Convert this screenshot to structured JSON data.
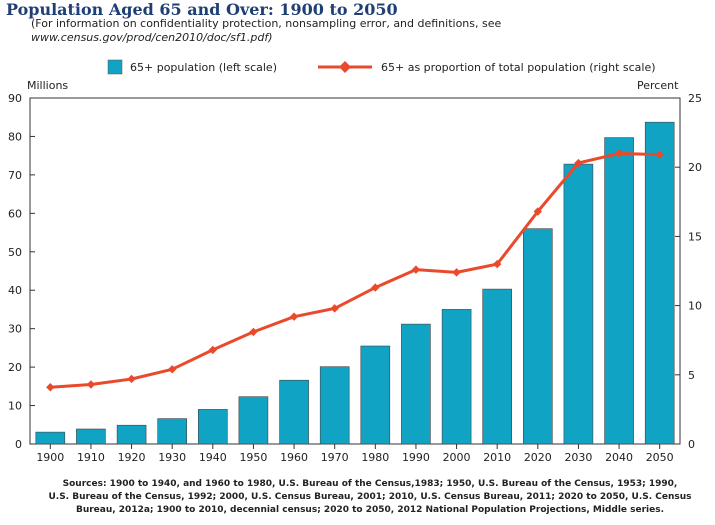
{
  "header": {
    "title": "Population Aged 65 and Over: 1900 to 2050",
    "subtitle_line1": "(For information on confidentiality protection, nonsampling error, and definitions, see",
    "subtitle_line2": "www.census.gov/prod/cen2010/doc/sf1.pdf)"
  },
  "colors": {
    "bar": "#11a3c3",
    "line": "#ea4a2c",
    "title": "#1f3f73"
  },
  "chart_data": {
    "type": "bar",
    "title": "Population Aged 65 and Over: 1900 to 2050",
    "categories": [
      "1900",
      "1910",
      "1920",
      "1930",
      "1940",
      "1950",
      "1960",
      "1970",
      "1980",
      "1990",
      "2000",
      "2010",
      "2020",
      "2030",
      "2040",
      "2050"
    ],
    "series": [
      {
        "name": "65+ population (left scale)",
        "type": "bar",
        "axis": "left",
        "values": [
          3.1,
          3.9,
          4.9,
          6.6,
          9.0,
          12.3,
          16.6,
          20.1,
          25.5,
          31.2,
          35.0,
          40.3,
          56.0,
          72.8,
          79.7,
          83.7
        ]
      },
      {
        "name": "65+ as proportion of total population (right scale)",
        "type": "line",
        "axis": "right",
        "values": [
          4.1,
          4.3,
          4.7,
          5.4,
          6.8,
          8.1,
          9.2,
          9.8,
          11.3,
          12.6,
          12.4,
          13.0,
          16.8,
          20.3,
          21.0,
          20.9
        ]
      }
    ],
    "left_axis": {
      "label": "Millions",
      "ylim": [
        0,
        90
      ],
      "ticks": [
        "0",
        "10",
        "20",
        "30",
        "40",
        "50",
        "60",
        "70",
        "80",
        "90"
      ]
    },
    "right_axis": {
      "label": "Percent",
      "ylim": [
        0,
        25
      ],
      "ticks": [
        "0",
        "5",
        "10",
        "15",
        "20",
        "25"
      ]
    },
    "legend_position": "top",
    "grid": false
  },
  "source": {
    "line1": "Sources: 1900 to 1940, and 1960 to 1980, U.S. Bureau of the Census,1983; 1950, U.S. Bureau of the Census, 1953; 1990,",
    "line2": "U.S. Bureau of the Census, 1992; 2000, U.S. Census Bureau, 2001; 2010, U.S. Census Bureau, 2011; 2020 to 2050, U.S. Census",
    "line3": "Bureau, 2012a; 1900 to 2010, decennial census; 2020 to 2050, 2012 National Population Projections, Middle series."
  }
}
